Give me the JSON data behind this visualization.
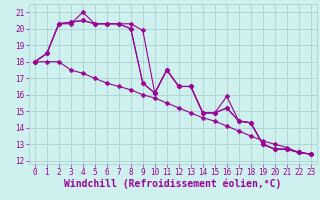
{
  "background_color": "#cef0ee",
  "grid_color": "#aacccc",
  "line_color": "#990099",
  "marker_color": "#990099",
  "xlabel": "Windchill (Refroidissement éolien,°C)",
  "ylim": [
    11.8,
    21.5
  ],
  "xlim": [
    -0.5,
    23.5
  ],
  "yticks": [
    12,
    13,
    14,
    15,
    16,
    17,
    18,
    19,
    20,
    21
  ],
  "xticks": [
    0,
    1,
    2,
    3,
    4,
    5,
    6,
    7,
    8,
    9,
    10,
    11,
    12,
    13,
    14,
    15,
    16,
    17,
    18,
    19,
    20,
    21,
    22,
    23
  ],
  "series": [
    [
      18.0,
      18.5,
      20.3,
      20.3,
      21.0,
      20.3,
      20.3,
      20.3,
      20.3,
      19.9,
      16.1,
      17.5,
      16.5,
      16.5,
      14.9,
      14.9,
      15.9,
      14.4,
      14.3,
      13.0,
      12.7,
      12.7,
      12.5,
      12.4
    ],
    [
      18.0,
      18.5,
      20.3,
      20.4,
      20.5,
      20.3,
      20.3,
      20.3,
      20.0,
      16.7,
      16.1,
      17.5,
      16.5,
      16.5,
      14.9,
      14.9,
      15.2,
      14.4,
      14.3,
      13.0,
      12.7,
      12.7,
      12.5,
      12.4
    ],
    [
      18.0,
      18.5,
      20.3,
      20.4,
      20.5,
      20.3,
      20.3,
      20.3,
      20.0,
      16.7,
      16.1,
      17.5,
      16.5,
      16.5,
      14.9,
      14.9,
      15.2,
      14.4,
      14.3,
      13.0,
      12.7,
      12.7,
      12.5,
      12.4
    ],
    [
      18.0,
      18.0,
      18.0,
      17.5,
      17.3,
      17.0,
      16.7,
      16.5,
      16.3,
      16.0,
      15.8,
      15.5,
      15.2,
      14.9,
      14.6,
      14.4,
      14.1,
      13.8,
      13.5,
      13.2,
      13.0,
      12.8,
      12.5,
      12.4
    ]
  ],
  "marker_size": 2.5,
  "line_width": 0.8,
  "tick_fontsize": 5.5,
  "xlabel_fontsize": 7.0
}
